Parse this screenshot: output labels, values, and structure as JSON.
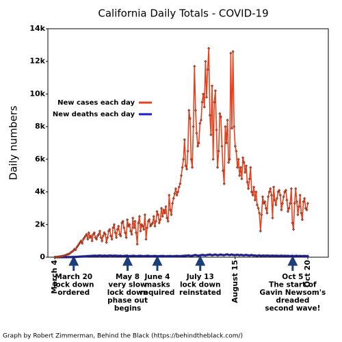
{
  "chart_data": {
    "type": "line",
    "title": "California Daily Totals - COVID-19",
    "y_label": "Daily numbers",
    "credit": "Graph by Robert Zimmerman, Behind the Black (https://behindtheblack.com/)",
    "ylim": [
      0,
      14000
    ],
    "yticks": [
      0,
      {
        "value": 2000,
        "label": "2k"
      },
      {
        "value": 4000,
        "label": "4k"
      },
      {
        "value": 6000,
        "label": "6k"
      },
      {
        "value": 8000,
        "label": "8k"
      },
      {
        "value": 10000,
        "label": "10k"
      },
      {
        "value": 12000,
        "label": "12k"
      },
      {
        "value": 14000,
        "label": "14k"
      }
    ],
    "grid": false,
    "legend": "upper left",
    "categories": [
      "March 4",
      null,
      null,
      null,
      null,
      null,
      null,
      null,
      null,
      null,
      null,
      null,
      null,
      null,
      null,
      null,
      null,
      null,
      null,
      null,
      null,
      null,
      null,
      null,
      null,
      null,
      null,
      null,
      null,
      null,
      null,
      null,
      null,
      null,
      null,
      null,
      null,
      null,
      null,
      null,
      null,
      null,
      null,
      null,
      null,
      null,
      null,
      null,
      null,
      null,
      null,
      null,
      null,
      null,
      null,
      null,
      null,
      null,
      null,
      null,
      null,
      null,
      null,
      null,
      null,
      null,
      null,
      null,
      null,
      null,
      null,
      null,
      null,
      null,
      null,
      null,
      null,
      null,
      null,
      null,
      null,
      null,
      null,
      null,
      null,
      null,
      null,
      null,
      null,
      null,
      null,
      null,
      null,
      null,
      null,
      null,
      null,
      null,
      null,
      null,
      null,
      null,
      null,
      null,
      null,
      null,
      null,
      null,
      null,
      null,
      null,
      null,
      null,
      null,
      null,
      null,
      null,
      null,
      null,
      null,
      null,
      null,
      null,
      null,
      null,
      null,
      null,
      null,
      null,
      null,
      null,
      null,
      null,
      null,
      null,
      null,
      null,
      null,
      null,
      null,
      null,
      null,
      null,
      null,
      null,
      null,
      null,
      null,
      null,
      null,
      null,
      null,
      null,
      null,
      null,
      null,
      null,
      null,
      null,
      null,
      null,
      null,
      null,
      null,
      "August 15",
      null,
      null,
      null,
      null,
      null,
      null,
      null,
      null,
      null,
      null,
      null,
      null,
      null,
      null,
      null,
      null,
      null,
      null,
      null,
      null,
      null,
      null,
      null,
      null,
      null,
      null,
      null,
      null,
      null,
      null,
      null,
      null,
      null,
      null,
      null,
      null,
      null,
      null,
      null,
      null,
      null,
      null,
      null,
      null,
      null,
      null,
      null,
      null,
      null,
      null,
      null,
      null,
      null,
      null,
      null,
      null,
      null,
      null,
      null,
      null,
      null,
      null,
      null,
      null,
      null,
      "Oct 20"
    ],
    "series": [
      {
        "name": "New cases each day",
        "color": "#e8401c",
        "values": [
          10,
          5,
          15,
          20,
          30,
          40,
          50,
          60,
          80,
          100,
          120,
          150,
          180,
          200,
          250,
          300,
          350,
          400,
          500,
          450,
          600,
          700,
          800,
          900,
          1000,
          850,
          1100,
          1200,
          1300,
          1400,
          1100,
          1500,
          1200,
          1300,
          1000,
          1400,
          1500,
          1200,
          1100,
          1300,
          1400,
          1600,
          1200,
          1000,
          1300,
          1500,
          1400,
          900,
          1200,
          1600,
          1700,
          1300,
          1100,
          1800,
          2000,
          1500,
          1200,
          1700,
          1900,
          1400,
          1300,
          2100,
          2200,
          1800,
          1500,
          1200,
          2300,
          1900,
          2000,
          1600,
          1400,
          2400,
          1800,
          2200,
          1500,
          800,
          2100,
          2500,
          1600,
          2000,
          1900,
          1700,
          2600,
          1100,
          1800,
          2200,
          2300,
          1900,
          2000,
          2100,
          2500,
          1900,
          2200,
          2800,
          2600,
          2100,
          2300,
          3000,
          2500,
          2900,
          2700,
          3100,
          2400,
          2200,
          3800,
          2900,
          2600,
          3300,
          3600,
          3900,
          4200,
          3800,
          4000,
          4300,
          4500,
          5000,
          5500,
          6000,
          7200,
          5600,
          5400,
          6500,
          9000,
          8500,
          6000,
          5500,
          8000,
          11700,
          9000,
          7600,
          6800,
          7000,
          8200,
          8400,
          9500,
          10000,
          9200,
          12000,
          9800,
          11500,
          12800,
          8700,
          7500,
          10500,
          6000,
          9500,
          10200,
          7800,
          5500,
          6500,
          8800,
          8600,
          6800,
          5300,
          4500,
          8000,
          7000,
          8400,
          5800,
          6000,
          12500,
          7900,
          12600,
          8000,
          6800,
          6500,
          5500,
          6000,
          5000,
          5500,
          4800,
          6100,
          5800,
          5200,
          5600,
          4600,
          4200,
          4800,
          5500,
          4000,
          3800,
          4300,
          3500,
          4000,
          3200,
          3000,
          2700,
          1600,
          2600,
          3700,
          3300,
          3400,
          3000,
          2700,
          3700,
          4000,
          4200,
          3800,
          2400,
          4300,
          3500,
          3200,
          3600,
          4000,
          4100,
          3800,
          2900,
          3300,
          3700,
          4000,
          4100,
          3500,
          2800,
          3000,
          3300,
          4200,
          2100,
          1700,
          3300,
          4200,
          3400,
          2600,
          3100,
          3800,
          2700,
          2300,
          3400,
          3600,
          3000,
          2900,
          3300
        ]
      },
      {
        "name": "New deaths each day",
        "color": "#1a1ad0",
        "values": [
          0,
          0,
          0,
          1,
          0,
          1,
          1,
          2,
          1,
          3,
          2,
          4,
          5,
          6,
          5,
          8,
          10,
          12,
          15,
          18,
          20,
          25,
          30,
          35,
          40,
          38,
          45,
          50,
          55,
          60,
          65,
          70,
          68,
          75,
          80,
          85,
          90,
          88,
          80,
          85,
          95,
          100,
          90,
          85,
          88,
          92,
          95,
          80,
          85,
          90,
          100,
          95,
          88,
          82,
          90,
          95,
          85,
          80,
          75,
          80,
          85,
          70,
          65,
          75,
          80,
          85,
          90,
          70,
          65,
          70,
          75,
          80,
          85,
          70,
          60,
          65,
          75,
          80,
          85,
          70,
          65,
          60,
          70,
          75,
          80,
          85,
          70,
          65,
          60,
          65,
          70,
          75,
          70,
          60,
          55,
          60,
          65,
          70,
          75,
          70,
          60,
          55,
          60,
          65,
          70,
          72,
          60,
          55,
          60,
          65,
          70,
          75,
          70,
          65,
          60,
          70,
          75,
          80,
          85,
          90,
          95,
          100,
          110,
          80,
          75,
          90,
          100,
          120,
          130,
          110,
          90,
          95,
          110,
          120,
          140,
          130,
          120,
          110,
          130,
          140,
          150,
          160,
          140,
          120,
          130,
          150,
          160,
          140,
          120,
          130,
          150,
          160,
          140,
          130,
          120,
          150,
          160,
          170,
          140,
          130,
          150,
          160,
          140,
          130,
          120,
          140,
          150,
          130,
          120,
          140,
          130,
          120,
          110,
          130,
          140,
          120,
          110,
          100,
          120,
          130,
          110,
          100,
          110,
          90,
          80,
          100,
          110,
          90,
          80,
          100,
          95,
          85,
          90,
          100,
          95,
          85,
          80,
          90,
          95,
          85,
          80,
          90,
          85,
          80,
          75,
          85,
          90,
          80,
          75,
          85,
          80,
          75,
          80,
          70,
          65,
          75,
          80,
          70,
          65,
          75,
          80,
          70,
          65,
          75,
          70,
          65,
          70,
          75,
          70,
          65,
          70
        ]
      }
    ],
    "annotations": [
      {
        "lines": [
          "March 20",
          "lock down",
          "ordered"
        ]
      },
      {
        "lines": [
          "May 8",
          "very slow",
          "lock down",
          "phase out",
          "begins"
        ]
      },
      {
        "lines": [
          "June 4",
          "masks",
          "required"
        ]
      },
      {
        "lines": [
          "July 13",
          "lock down",
          "reinstated"
        ]
      },
      {
        "lines": [
          "Oct 5",
          "The start of",
          "Gavin Newsom's",
          "dreaded",
          "second wave!"
        ]
      }
    ]
  }
}
